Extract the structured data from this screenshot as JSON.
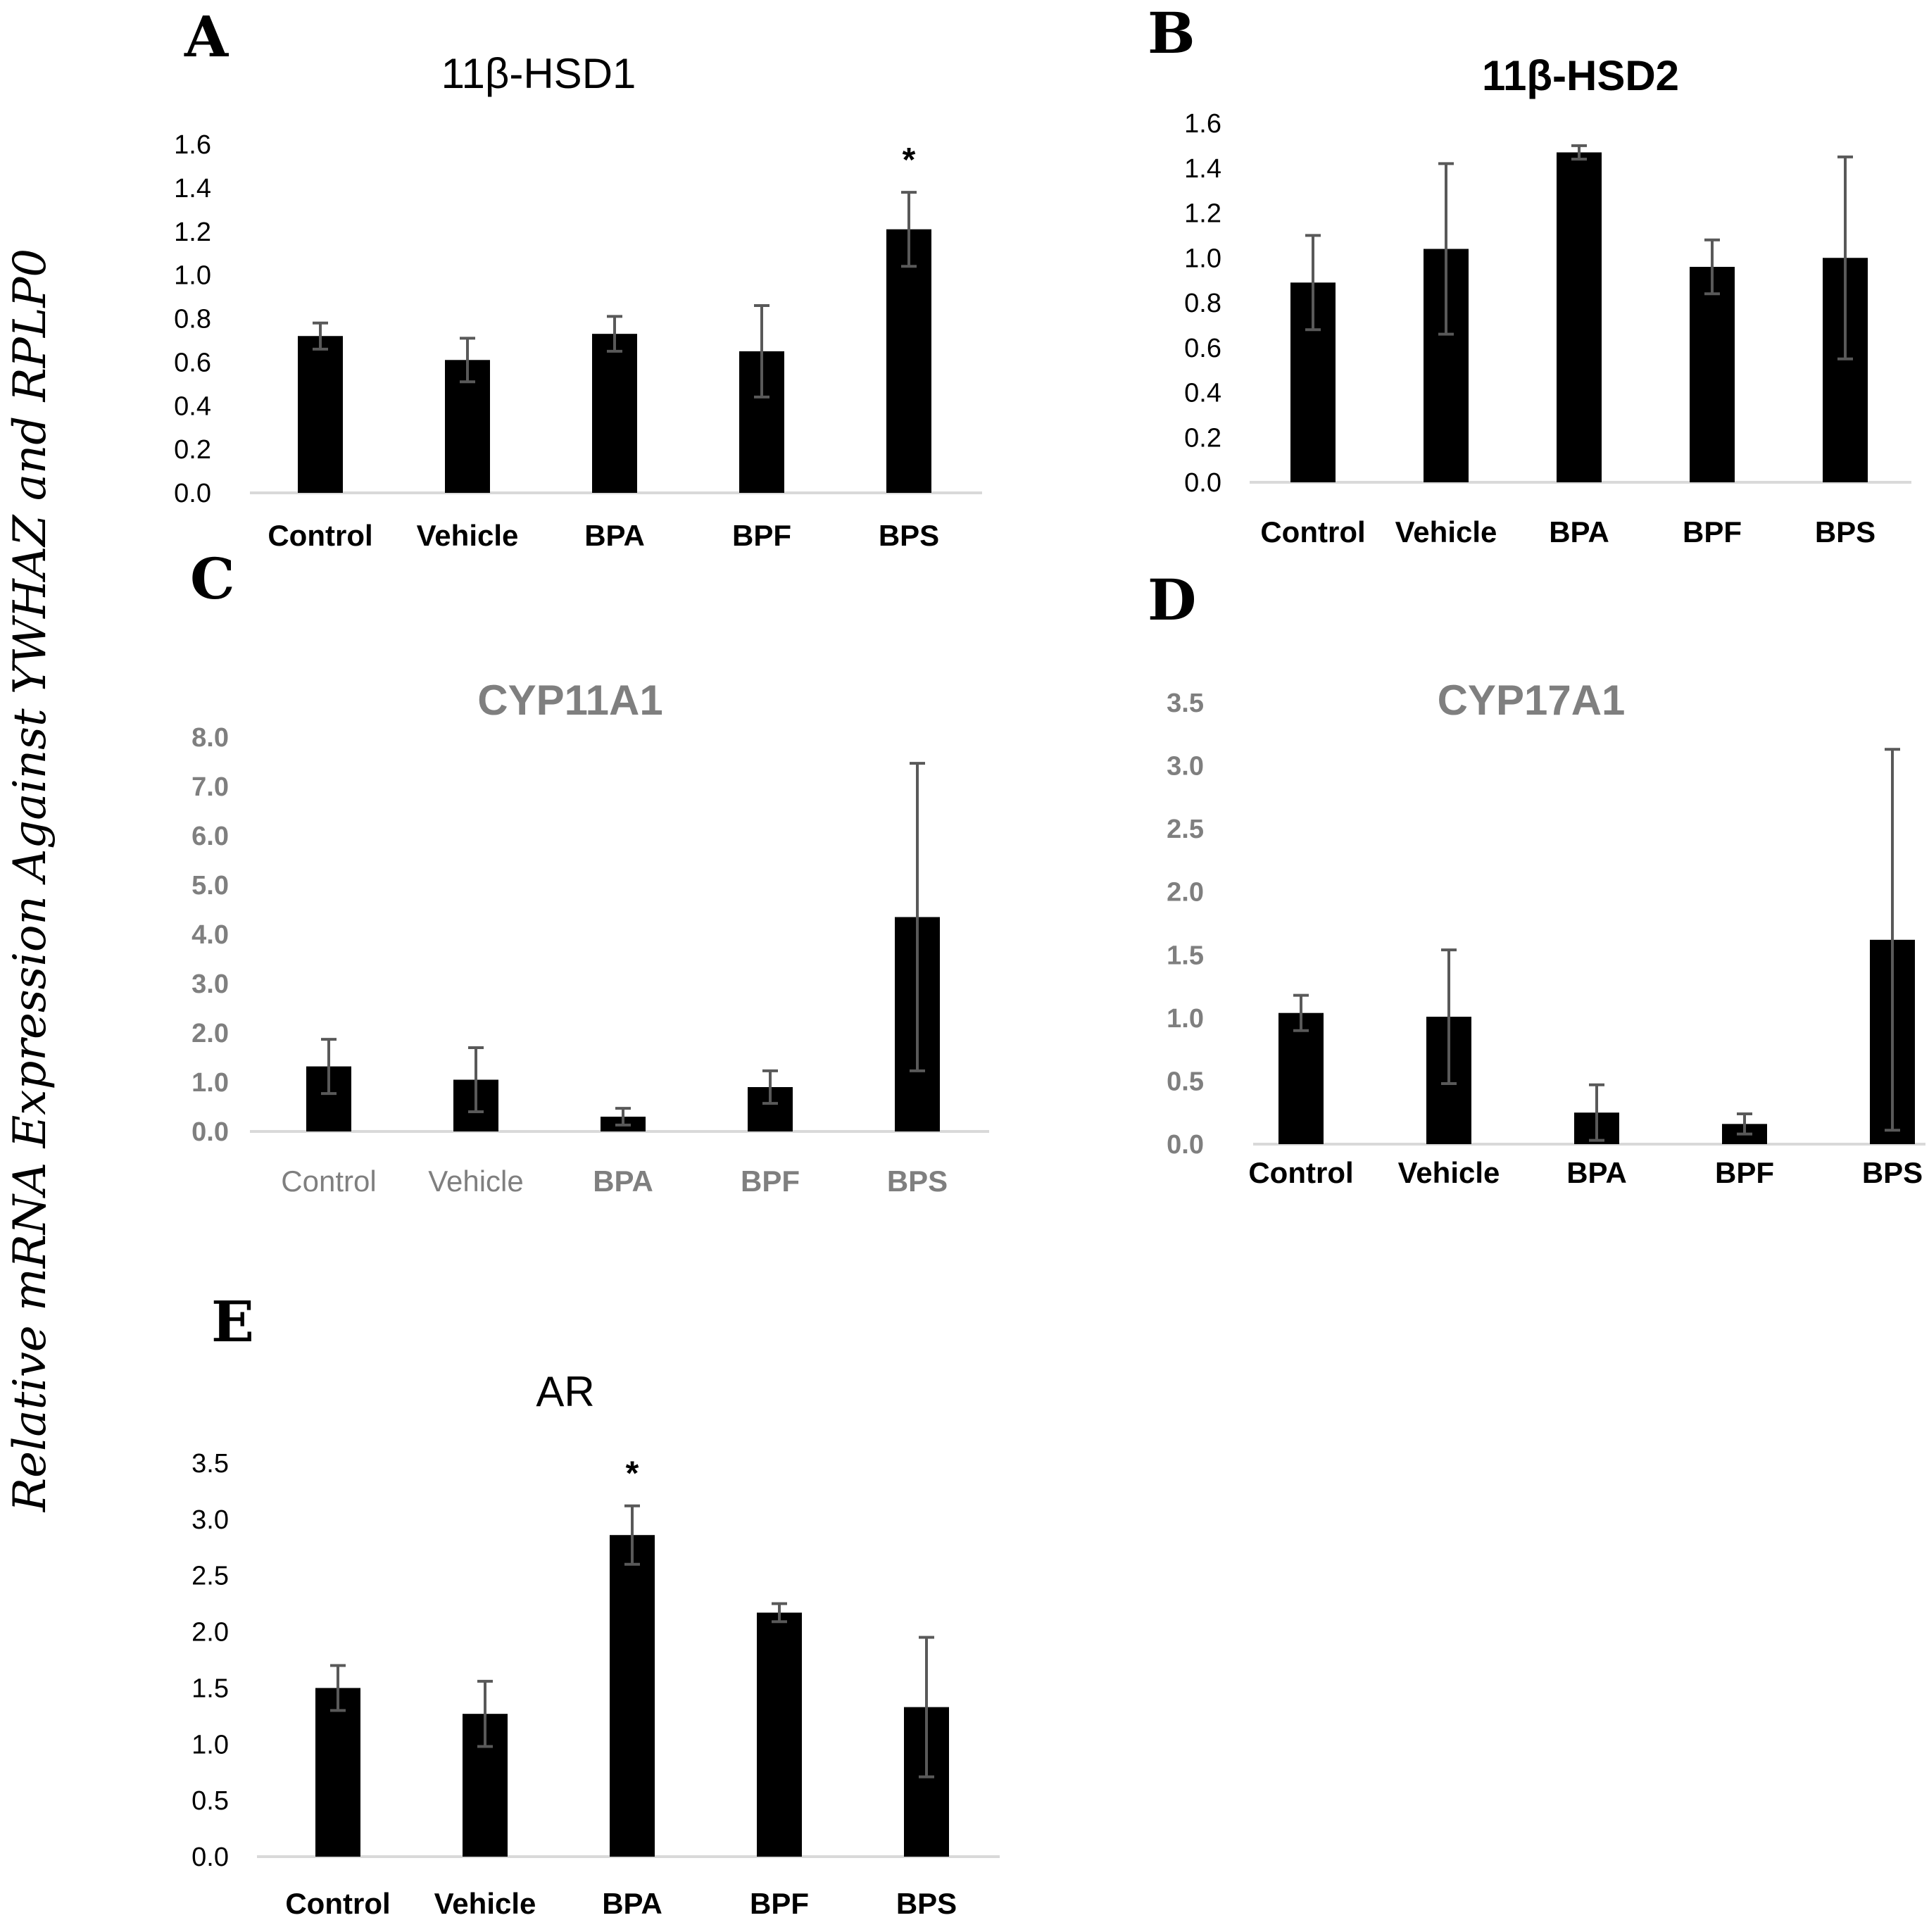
{
  "figure": {
    "y_axis_label": "Relative mRNA Expression Against YWHAZ and RPLP0"
  },
  "chart_data": [
    {
      "panel": "A",
      "type": "bar",
      "title": "11β-HSD1",
      "categories": [
        "Control",
        "Vehicle",
        "BPA",
        "BPF",
        "BPS"
      ],
      "values": [
        0.72,
        0.61,
        0.73,
        0.65,
        1.21
      ],
      "errors": [
        0.06,
        0.1,
        0.08,
        0.21,
        0.17
      ],
      "significance": [
        "",
        "",
        "",
        "",
        "*"
      ],
      "ylim": [
        0,
        1.6
      ],
      "yticks": [
        "0.0",
        "0.2",
        "0.4",
        "0.6",
        "0.8",
        "1.0",
        "1.2",
        "1.4",
        "1.6"
      ],
      "grid": false,
      "colors": {
        "bar": "#000000",
        "error": "#595959",
        "axis": "#d9d9d9"
      }
    },
    {
      "panel": "B",
      "type": "bar",
      "title": "11β-HSD2",
      "categories": [
        "Control",
        "Vehicle",
        "BPA",
        "BPF",
        "BPS"
      ],
      "values": [
        0.89,
        1.04,
        1.47,
        0.96,
        1.0
      ],
      "errors": [
        0.21,
        0.38,
        0.03,
        0.12,
        0.45
      ],
      "significance": [
        "",
        "",
        "",
        "",
        ""
      ],
      "ylim": [
        0,
        1.6
      ],
      "yticks": [
        "0.0",
        "0.2",
        "0.4",
        "0.6",
        "0.8",
        "1.0",
        "1.2",
        "1.4",
        "1.6"
      ],
      "grid": false,
      "colors": {
        "bar": "#000000",
        "error": "#595959",
        "axis": "#d9d9d9"
      }
    },
    {
      "panel": "C",
      "type": "bar",
      "title": "CYP11A1",
      "categories": [
        "Control",
        "Vehicle",
        "BPA",
        "BPF",
        "BPS"
      ],
      "values": [
        1.32,
        1.05,
        0.3,
        0.9,
        4.35
      ],
      "errors": [
        0.55,
        0.65,
        0.17,
        0.33,
        3.12
      ],
      "significance": [
        "",
        "",
        "",
        "",
        ""
      ],
      "ylim": [
        0,
        8
      ],
      "yticks": [
        "0.0",
        "1.0",
        "2.0",
        "3.0",
        "4.0",
        "5.0",
        "6.0",
        "7.0",
        "8.0"
      ],
      "grid": false,
      "colors": {
        "bar": "#000000",
        "error": "#595959",
        "axis": "#d9d9d9"
      }
    },
    {
      "panel": "D",
      "type": "bar",
      "title": "CYP17A1",
      "categories": [
        "Control",
        "Vehicle",
        "BPA",
        "BPF",
        "BPS"
      ],
      "values": [
        1.04,
        1.01,
        0.25,
        0.16,
        1.62
      ],
      "errors": [
        0.14,
        0.53,
        0.22,
        0.08,
        1.51
      ],
      "significance": [
        "",
        "",
        "",
        "",
        ""
      ],
      "ylim": [
        0,
        3.5
      ],
      "yticks": [
        "0.0",
        "0.5",
        "1.0",
        "1.5",
        "2.0",
        "2.5",
        "3.0",
        "3.5"
      ],
      "grid": false,
      "colors": {
        "bar": "#000000",
        "error": "#595959",
        "axis": "#d9d9d9"
      }
    },
    {
      "panel": "E",
      "type": "bar",
      "title": "AR",
      "categories": [
        "Control",
        "Vehicle",
        "BPA",
        "BPF",
        "BPS"
      ],
      "values": [
        1.5,
        1.27,
        2.86,
        2.17,
        1.33
      ],
      "errors": [
        0.2,
        0.29,
        0.26,
        0.08,
        0.62
      ],
      "significance": [
        "",
        "",
        "*",
        "",
        ""
      ],
      "ylim": [
        0,
        3.5
      ],
      "yticks": [
        "0.0",
        "0.5",
        "1.0",
        "1.5",
        "2.0",
        "2.5",
        "3.0",
        "3.5"
      ],
      "grid": false,
      "colors": {
        "bar": "#000000",
        "error": "#595959",
        "axis": "#d9d9d9"
      }
    }
  ]
}
